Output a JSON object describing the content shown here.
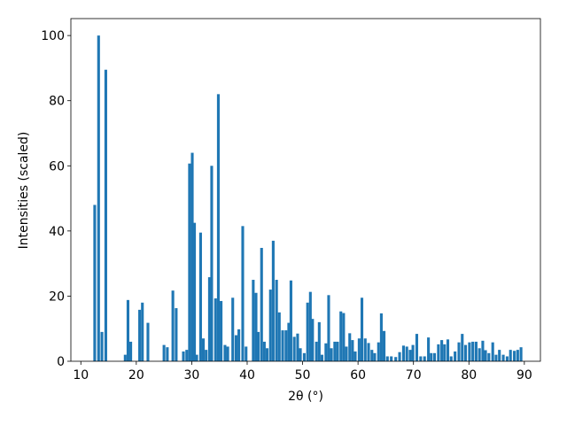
{
  "chart_data": {
    "type": "bar",
    "xlabel": "2θ (°)",
    "ylabel": "Intensities (scaled)",
    "color": "#1f77b4",
    "x": [
      12.5,
      13.2,
      13.8,
      14.5,
      18.0,
      18.5,
      19.0,
      20.6,
      21.1,
      22.1,
      25.0,
      25.6,
      26.6,
      27.2,
      28.5,
      29.1,
      29.6,
      30.1,
      30.5,
      30.9,
      31.6,
      32.1,
      32.6,
      33.2,
      33.6,
      34.3,
      34.8,
      35.3,
      36.0,
      36.5,
      37.4,
      38.0,
      38.5,
      39.2,
      39.8,
      41.1,
      41.6,
      42.0,
      42.6,
      43.1,
      43.6,
      44.2,
      44.7,
      45.3,
      45.8,
      46.4,
      47.0,
      47.5,
      47.9,
      48.5,
      49.1,
      49.6,
      50.3,
      50.9,
      51.4,
      51.8,
      52.5,
      53.0,
      53.5,
      54.2,
      54.7,
      55.2,
      55.8,
      56.3,
      56.9,
      57.4,
      57.9,
      58.5,
      59.0,
      59.5,
      60.2,
      60.7,
      61.3,
      61.9,
      62.5,
      63.0,
      63.7,
      64.2,
      64.7,
      65.3,
      66.0,
      66.8,
      67.5,
      68.2,
      68.8,
      69.4,
      69.9,
      70.6,
      71.3,
      72.0,
      72.7,
      73.2,
      73.8,
      74.5,
      75.1,
      75.6,
      76.2,
      76.8,
      77.5,
      78.2,
      78.8,
      79.4,
      80.1,
      80.7,
      81.3,
      81.9,
      82.5,
      83.0,
      83.6,
      84.3,
      84.9,
      85.5,
      86.2,
      86.9,
      87.5,
      88.2,
      88.8,
      89.4
    ],
    "values": [
      48,
      100,
      9,
      89.5,
      2,
      18.8,
      6,
      15.8,
      18,
      11.8,
      5,
      4.3,
      21.7,
      16.3,
      3,
      3.5,
      60.7,
      64,
      42.5,
      2,
      39.5,
      7,
      3.5,
      25.8,
      60,
      19.3,
      82,
      18.5,
      5,
      4.5,
      19.5,
      8,
      9.8,
      41.5,
      4.5,
      25,
      21,
      9,
      34.8,
      6,
      4,
      22,
      37,
      25,
      15,
      9.5,
      9.5,
      11.8,
      24.8,
      7.5,
      8.5,
      4,
      2.5,
      18,
      21.3,
      13,
      6,
      12,
      2,
      5.5,
      20.3,
      4,
      6,
      6,
      15.3,
      14.8,
      4.5,
      8.6,
      6.5,
      3,
      7,
      19.5,
      7,
      5.6,
      3.5,
      2.5,
      5.8,
      14.7,
      9.3,
      1.5,
      1.5,
      1.3,
      2.8,
      4.8,
      4.5,
      3.5,
      5,
      8.4,
      1.5,
      1.5,
      7.3,
      2.5,
      2.5,
      5.2,
      6.5,
      5.2,
      6.7,
      1.5,
      3,
      5.8,
      8.4,
      5,
      5.8,
      6,
      6,
      4,
      6.3,
      3.4,
      2.5,
      5.8,
      2,
      3.5,
      2,
      1.5,
      3.5,
      3.2,
      3.5,
      4.3
    ],
    "xlim": [
      8.2,
      92.9
    ],
    "ylim": [
      0,
      105.2
    ],
    "xticks": [
      10,
      20,
      30,
      40,
      50,
      60,
      70,
      80,
      90
    ],
    "yticks": [
      0,
      20,
      40,
      60,
      80,
      100
    ]
  }
}
